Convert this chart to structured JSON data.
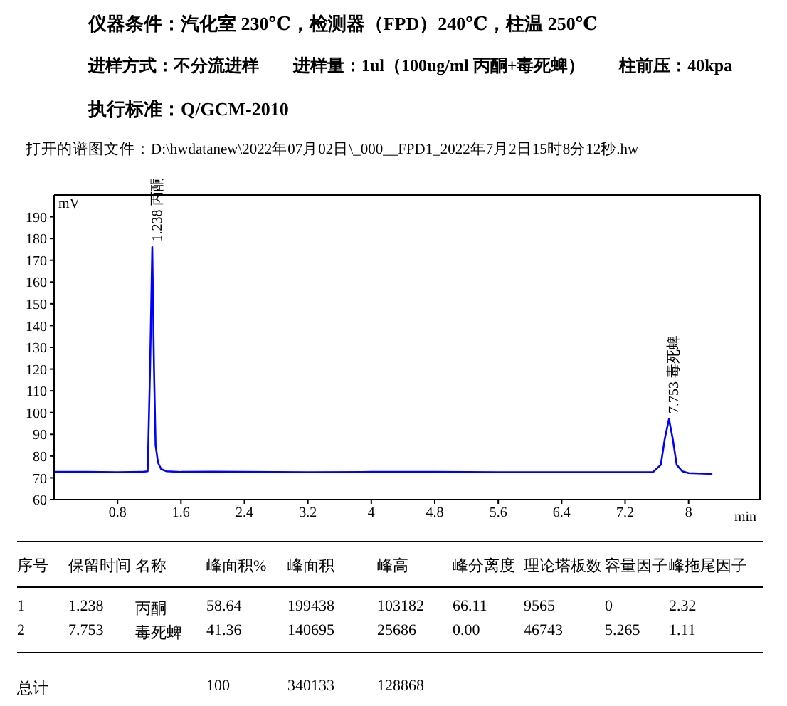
{
  "chart_data": {
    "type": "line",
    "title": "仪器条件：汽化室 230℃，检测器（FPD）240℃，柱温 250℃",
    "subtitle": "进样方式：不分流进样　　进样量：1ul（100ug/ml 丙酮+毒死蜱）　　柱前压：40kpa",
    "xlabel": "min",
    "ylabel": "mV",
    "x": [
      0,
      0.4,
      0.8,
      1.1,
      1.18,
      1.21,
      1.238,
      1.26,
      1.28,
      1.31,
      1.35,
      1.42,
      1.6,
      2.0,
      2.4,
      3.2,
      4.0,
      4.8,
      5.6,
      6.4,
      7.2,
      7.55,
      7.65,
      7.7,
      7.753,
      7.8,
      7.85,
      7.92,
      8.0,
      8.3
    ],
    "series": [
      {
        "color": "#0000ff",
        "values": [
          72.7,
          72.7,
          72.6,
          72.7,
          73,
          120,
          176,
          120,
          85,
          77,
          74,
          73,
          72.7,
          72.8,
          72.7,
          72.6,
          72.7,
          72.7,
          72.6,
          72.6,
          72.6,
          72.6,
          76,
          88,
          97,
          88,
          76,
          73,
          72.2,
          71.8
        ]
      }
    ],
    "xlim": [
      0,
      8.9
    ],
    "xticks": [
      0.8,
      1.6,
      2.4,
      3.2,
      4,
      4.8,
      5.6,
      6.4,
      7.2,
      8
    ],
    "ylim": [
      60,
      200
    ],
    "yticks": [
      60,
      70,
      80,
      90,
      100,
      110,
      120,
      130,
      140,
      150,
      160,
      170,
      180,
      190
    ],
    "marker": "none",
    "line_style": "solid",
    "annotations": [
      "执行标准：Q/GCM-2010",
      "打开的谱图文件：D:\\hwdatanew\\2022年07月02日\\_000__FPD1_2022年7月2日15时8分12秒.hw",
      {
        "text": "1.238 丙酮",
        "x": 1.238,
        "y": 176
      },
      {
        "text": "7.753 毒死蜱",
        "x": 7.753,
        "y": 97
      },
      "序号",
      "保留时间",
      "名称",
      "峰面积%",
      "峰面积",
      "峰高",
      "峰分离度",
      "理论塔板数",
      "容量因子",
      "峰拖尾因子",
      "1",
      "1.238",
      "丙酮",
      "58.64",
      "199438",
      "103182",
      "66.11",
      "9565",
      "0",
      "2.32",
      "2",
      "7.753",
      "毒死蜱",
      "41.36",
      "140695",
      "25686",
      "0.00",
      "46743",
      "5.265",
      "1.11",
      "总计",
      "100",
      "340133",
      "128868"
    ]
  }
}
